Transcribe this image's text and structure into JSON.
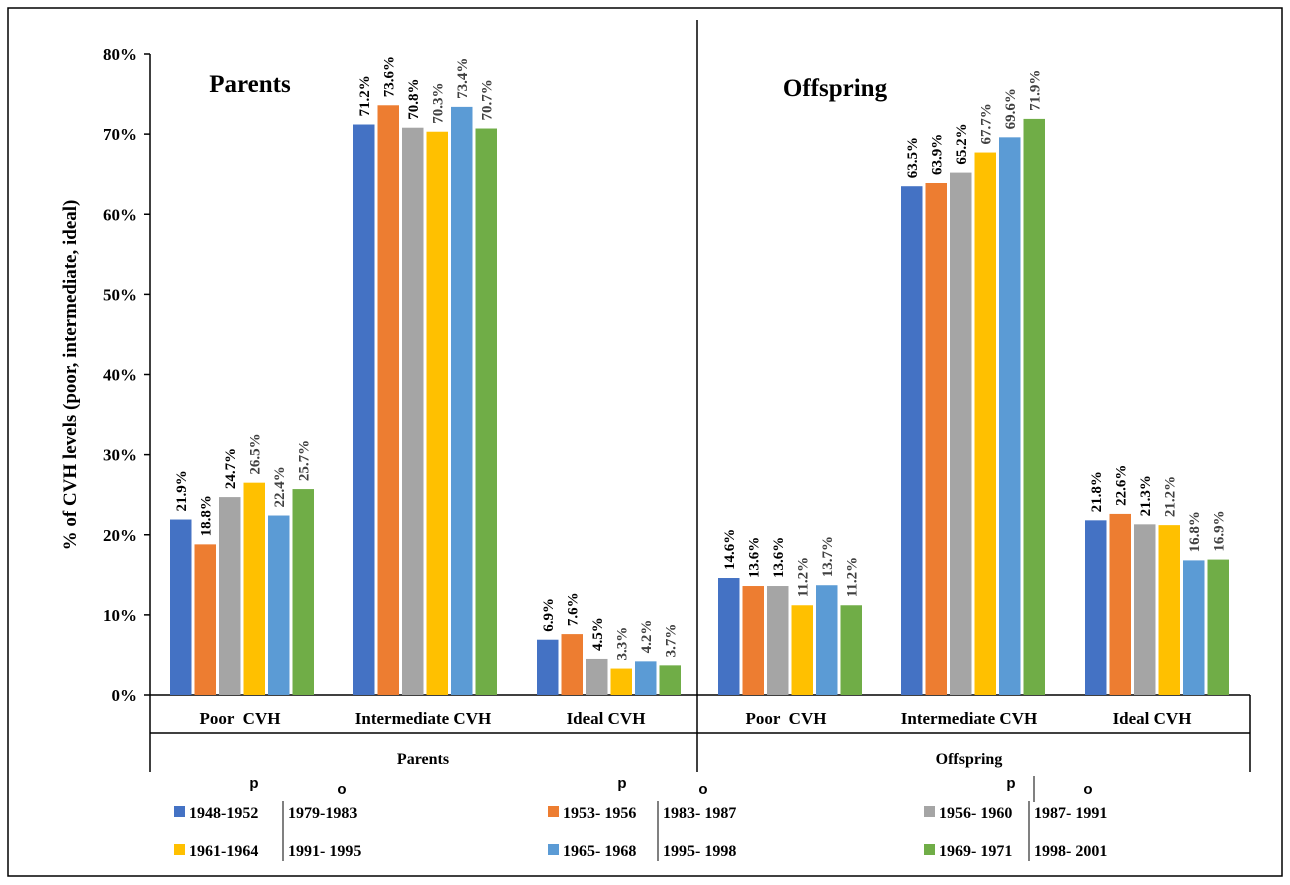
{
  "chart_data": {
    "type": "bar",
    "ylabel": "% of CVH levels (poor, intermediate, ideal)",
    "ylim": [
      0,
      80
    ],
    "yticks": [
      "0%",
      "10%",
      "20%",
      "30%",
      "40%",
      "50%",
      "60%",
      "70%",
      "80%"
    ],
    "categories": [
      "Poor  CVH",
      "Intermediate CVH",
      "Ideal CVH"
    ],
    "grid": false,
    "legend_position": "bottom",
    "colors": [
      "#4472C4",
      "#ED7D31",
      "#A5A5A5",
      "#FFC000",
      "#5B9BD5",
      "#70AD47"
    ],
    "label_colors": [
      "#000000",
      "#000000",
      "#000000",
      "#404040",
      "#404040",
      "#404040"
    ],
    "panels": [
      {
        "title": "Parents",
        "group_label": "Parents",
        "series": [
          {
            "values": [
              21.9,
              71.2,
              6.9
            ],
            "labels": [
              "21.9%",
              "71.2%",
              "6.9%"
            ]
          },
          {
            "values": [
              18.8,
              73.6,
              7.6
            ],
            "labels": [
              "18.8%",
              "73.6%",
              "7.6%"
            ]
          },
          {
            "values": [
              24.7,
              70.8,
              4.5
            ],
            "labels": [
              "24.7%",
              "70.8%",
              "4.5%"
            ]
          },
          {
            "values": [
              26.5,
              70.3,
              3.3
            ],
            "labels": [
              "26.5%",
              "70.3%",
              "3.3%"
            ]
          },
          {
            "values": [
              22.4,
              73.4,
              4.2
            ],
            "labels": [
              "22.4%",
              "73.4%",
              "4.2%"
            ]
          },
          {
            "values": [
              25.7,
              70.7,
              3.7
            ],
            "labels": [
              "25.7%",
              "70.7%",
              "3.7%"
            ]
          }
        ]
      },
      {
        "title": "Offspring",
        "group_label": "Offspring",
        "series": [
          {
            "values": [
              14.6,
              63.5,
              21.8
            ],
            "labels": [
              "14.6%",
              "63.5%",
              "21.8%"
            ]
          },
          {
            "values": [
              13.6,
              63.9,
              22.6
            ],
            "labels": [
              "13.6%",
              "63.9%",
              "22.6%"
            ]
          },
          {
            "values": [
              13.6,
              65.2,
              21.3
            ],
            "labels": [
              "13.6%",
              "65.2%",
              "21.3%"
            ]
          },
          {
            "values": [
              11.2,
              67.7,
              21.2
            ],
            "labels": [
              "11.2%",
              "67.7%",
              "21.2%"
            ]
          },
          {
            "values": [
              13.7,
              69.6,
              16.8
            ],
            "labels": [
              "13.7%",
              "69.6%",
              "16.8%"
            ]
          },
          {
            "values": [
              11.2,
              71.9,
              16.9
            ],
            "labels": [
              "11.2%",
              "71.9%",
              "16.9%"
            ]
          }
        ]
      }
    ],
    "legend": {
      "p_header": "p",
      "o_header": "o",
      "entries": [
        {
          "p": "1948-1952",
          "o": "1979-1983"
        },
        {
          "p": "1953- 1956",
          "o": "1983- 1987"
        },
        {
          "p": "1956- 1960",
          "o": "1987- 1991"
        },
        {
          "p": "1961-1964",
          "o": "1991- 1995"
        },
        {
          "p": "1965- 1968",
          "o": "1995- 1998"
        },
        {
          "p": "1969- 1971",
          "o": "1998- 2001"
        }
      ]
    }
  }
}
